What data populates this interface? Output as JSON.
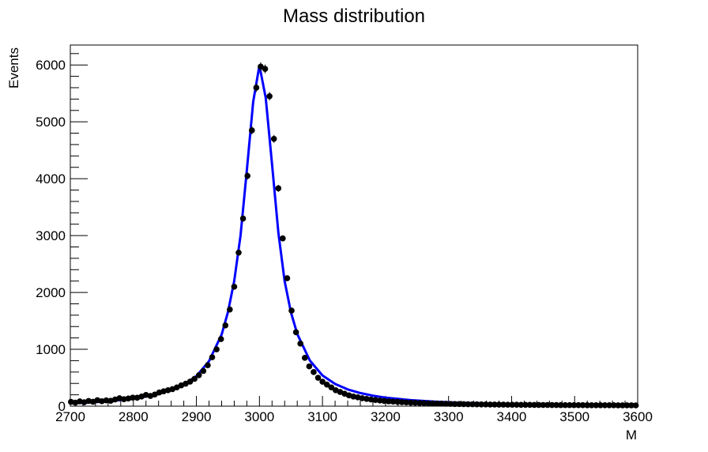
{
  "chart_data": {
    "type": "scatter",
    "title": "Mass distribution",
    "xlabel": "M",
    "ylabel": "Events",
    "xlim": [
      2700,
      3600
    ],
    "ylim": [
      0,
      6350
    ],
    "x_ticks": [
      2700,
      2800,
      2900,
      3000,
      3100,
      3200,
      3300,
      3400,
      3500,
      3600
    ],
    "y_ticks": [
      0,
      1000,
      2000,
      3000,
      4000,
      5000,
      6000
    ],
    "grid": false,
    "legend": "none",
    "colors": {
      "data": "#000000",
      "fit": "#0000ff",
      "frame": "#000000"
    },
    "series": [
      {
        "kind": "points-with-errors",
        "x": [
          2701,
          2708,
          2715,
          2722,
          2729,
          2736,
          2743,
          2750,
          2757,
          2764,
          2771,
          2778,
          2785,
          2792,
          2799,
          2806,
          2813,
          2820,
          2827,
          2834,
          2841,
          2848,
          2855,
          2862,
          2869,
          2876,
          2883,
          2890,
          2897,
          2904,
          2911,
          2918,
          2925,
          2932,
          2939,
          2946,
          2953,
          2960,
          2967,
          2974,
          2981,
          2988,
          2995,
          3002,
          3009,
          3016,
          3023,
          3030,
          3037,
          3044,
          3051,
          3058,
          3065,
          3072,
          3079,
          3086,
          3093,
          3100,
          3107,
          3114,
          3121,
          3128,
          3135,
          3142,
          3149,
          3156,
          3163,
          3170,
          3177,
          3184,
          3191,
          3198,
          3205,
          3212,
          3219,
          3226,
          3233,
          3240,
          3247,
          3254,
          3261,
          3268,
          3275,
          3282,
          3289,
          3296,
          3303,
          3310,
          3317,
          3324,
          3331,
          3338,
          3345,
          3352,
          3359,
          3366,
          3373,
          3380,
          3387,
          3394,
          3401,
          3408,
          3415,
          3422,
          3429,
          3436,
          3443,
          3450,
          3457,
          3464,
          3471,
          3478,
          3485,
          3492,
          3499,
          3506,
          3513,
          3520,
          3527,
          3534,
          3541,
          3548,
          3555,
          3562,
          3569,
          3576,
          3583,
          3590,
          3597
        ],
        "y": [
          75,
          62,
          84,
          68,
          92,
          78,
          105,
          87,
          101,
          95,
          118,
          140,
          122,
          135,
          150,
          148,
          170,
          198,
          180,
          205,
          240,
          262,
          280,
          300,
          330,
          365,
          395,
          432,
          480,
          545,
          620,
          720,
          860,
          1000,
          1180,
          1420,
          1700,
          2100,
          2700,
          3300,
          4050,
          4850,
          5600,
          5970,
          5930,
          5450,
          4700,
          3830,
          2950,
          2250,
          1680,
          1300,
          1100,
          850,
          700,
          600,
          500,
          430,
          380,
          330,
          280,
          250,
          220,
          190,
          170,
          155,
          140,
          128,
          118,
          108,
          100,
          92,
          85,
          80,
          76,
          70,
          66,
          62,
          60,
          56,
          53,
          50,
          48,
          46,
          44,
          42,
          40,
          38,
          37,
          36,
          34,
          33,
          32,
          31,
          30,
          29,
          28,
          27,
          27,
          26,
          25,
          25,
          24,
          23,
          23,
          22,
          22,
          21,
          21,
          20,
          20,
          19,
          19,
          19,
          18,
          18,
          18,
          17,
          17,
          17,
          16,
          16,
          16,
          16,
          15,
          15,
          15,
          15,
          14
        ],
        "yerr": [
          9,
          8,
          9,
          8,
          10,
          9,
          10,
          9,
          10,
          10,
          11,
          12,
          11,
          12,
          12,
          12,
          13,
          14,
          13,
          14,
          15,
          16,
          17,
          17,
          18,
          19,
          20,
          21,
          22,
          23,
          25,
          27,
          29,
          32,
          34,
          38,
          41,
          46,
          52,
          57,
          64,
          70,
          75,
          77,
          77,
          74,
          69,
          62,
          54,
          47,
          41,
          36,
          33,
          29,
          26,
          24,
          22,
          21,
          19,
          18,
          17,
          16,
          15,
          14,
          13,
          12,
          12,
          11,
          11,
          10,
          10,
          10,
          9,
          9,
          9,
          8,
          8,
          8,
          8,
          7,
          7,
          7,
          7,
          7,
          7,
          6,
          6,
          6,
          6,
          6,
          6,
          6,
          6,
          6,
          5,
          5,
          5,
          5,
          5,
          5,
          5,
          5,
          5,
          5,
          5,
          5,
          5,
          5,
          5,
          4,
          4,
          4,
          4,
          4,
          4,
          4,
          4,
          4,
          4,
          4,
          4,
          4,
          4,
          4,
          4,
          4,
          4,
          4,
          4
        ]
      },
      {
        "kind": "fit-curve",
        "x": [
          2700,
          2720,
          2740,
          2760,
          2780,
          2800,
          2820,
          2840,
          2860,
          2880,
          2900,
          2920,
          2940,
          2950,
          2960,
          2970,
          2980,
          2990,
          3000,
          3010,
          3020,
          3030,
          3040,
          3050,
          3060,
          3080,
          3100,
          3120,
          3140,
          3160,
          3180,
          3200,
          3240,
          3280,
          3320,
          3360,
          3400,
          3450,
          3500,
          3550,
          3600
        ],
        "y": [
          50,
          60,
          72,
          88,
          108,
          133,
          168,
          215,
          285,
          380,
          530,
          790,
          1260,
          1650,
          2200,
          3000,
          4150,
          5350,
          5990,
          5420,
          4250,
          3050,
          2200,
          1650,
          1270,
          800,
          540,
          390,
          295,
          230,
          185,
          150,
          105,
          78,
          60,
          48,
          40,
          32,
          26,
          22,
          19
        ]
      }
    ]
  }
}
